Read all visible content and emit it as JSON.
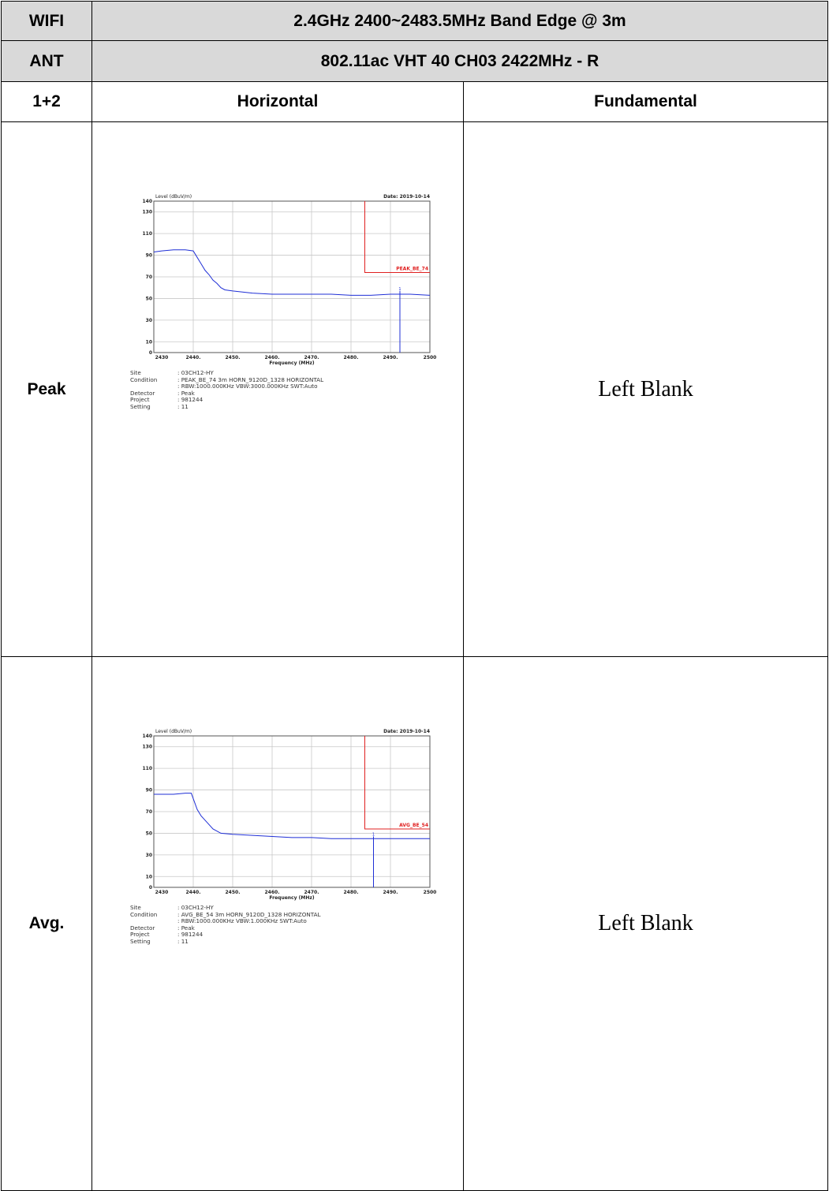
{
  "header": {
    "wifi_label": "WIFI",
    "band_title": "2.4GHz 2400~2483.5MHz Band Edge @ 3m",
    "ant_label": "ANT",
    "mode_title": "802.11ac VHT 40 CH03 2422MHz - R",
    "ant_value": "1+2",
    "col_horizontal": "Horizontal",
    "col_fundamental": "Fundamental"
  },
  "rows": [
    {
      "label": "Peak",
      "fundamental": "Left Blank",
      "plot": {
        "ylabel": "Level (dBuV/m)",
        "date": "Date: 2019-10-14",
        "xlabel": "Frequency (MHz)",
        "limit_label": "PEAK_BE_74",
        "marker": "1",
        "site_key": "Site",
        "site_val": ": 03CH12-HY",
        "condition_key": "Condition",
        "condition_val": ": PEAK_BE_74 3m HORN_9120D_1328 HORIZONTAL",
        "condition_val2": ": RBW:1000.000KHz VBW:3000.000KHz SWT:Auto",
        "detector_key": "Detector",
        "detector_val": ": Peak",
        "project_key": "Project",
        "project_val": ": 981244",
        "setting_key": "Setting",
        "setting_val": ": 11"
      }
    },
    {
      "label": "Avg.",
      "fundamental": "Left Blank",
      "plot": {
        "ylabel": "Level (dBuV/m)",
        "date": "Date: 2019-10-14",
        "xlabel": "Frequency (MHz)",
        "limit_label": "AVG_BE_54",
        "marker": "1",
        "site_key": "Site",
        "site_val": ": 03CH12-HY",
        "condition_key": "Condition",
        "condition_val": ": AVG_BE_54 3m HORN_9120D_1328 HORIZONTAL",
        "condition_val2": ": RBW:1000.000KHz VBW:1.000KHz SWT:Auto",
        "detector_key": "Detector",
        "detector_val": ": Peak",
        "project_key": "Project",
        "project_val": ": 981244",
        "setting_key": "Setting",
        "setting_val": ": 11"
      }
    }
  ],
  "colors": {
    "trace": "#1f2fd6",
    "limit": "#e02020",
    "grid": "#c8c8c8"
  },
  "chart_data": [
    {
      "type": "line",
      "title": "",
      "xlabel": "Frequency (MHz)",
      "ylabel": "Level (dBuV/m)",
      "xlim": [
        2430,
        2500
      ],
      "ylim": [
        0,
        140
      ],
      "x_ticks": [
        "2430",
        "2440.",
        "2450.",
        "2460.",
        "2470.",
        "2480.",
        "2490.",
        "2500"
      ],
      "y_ticks": [
        "140",
        "130",
        "110",
        "90",
        "70",
        "50",
        "30",
        "10",
        "0"
      ],
      "grid": true,
      "series": [
        {
          "x": [
            2430,
            2432,
            2435,
            2438,
            2440,
            2441,
            2442,
            2443,
            2444,
            2445,
            2446,
            2447,
            2448,
            2450,
            2455,
            2460,
            2465,
            2470,
            2475,
            2480,
            2485,
            2490,
            2495,
            2500
          ],
          "values": [
            93,
            94,
            95,
            95,
            94,
            88,
            82,
            76,
            72,
            67,
            64,
            60,
            58,
            57,
            55,
            54,
            54,
            54,
            54,
            53,
            53,
            54,
            54,
            53
          ]
        },
        {
          "name": "PEAK_BE_74",
          "x": [
            2483.5,
            2483.5,
            2500
          ],
          "values": [
            140,
            74,
            74
          ]
        }
      ],
      "marker": {
        "x": 2492.4,
        "y": 57
      }
    },
    {
      "type": "line",
      "title": "",
      "xlabel": "Frequency (MHz)",
      "ylabel": "Level (dBuV/m)",
      "xlim": [
        2430,
        2500
      ],
      "ylim": [
        0,
        140
      ],
      "x_ticks": [
        "2430",
        "2440.",
        "2450.",
        "2460.",
        "2470.",
        "2480.",
        "2490.",
        "2500"
      ],
      "y_ticks": [
        "140",
        "130",
        "110",
        "90",
        "70",
        "50",
        "30",
        "10",
        "0"
      ],
      "grid": true,
      "series": [
        {
          "x": [
            2430,
            2432,
            2435,
            2438,
            2439.5,
            2440,
            2441,
            2442,
            2443,
            2444,
            2445,
            2447,
            2450,
            2455,
            2460,
            2465,
            2470,
            2475,
            2480,
            2485,
            2490,
            2495,
            2500
          ],
          "values": [
            86,
            86,
            86,
            87,
            87,
            82,
            72,
            66,
            62,
            58,
            54,
            50,
            49,
            48,
            47,
            46,
            46,
            45,
            45,
            45,
            45,
            45,
            45
          ]
        },
        {
          "name": "AVG_BE_54",
          "x": [
            2483.5,
            2483.5,
            2500
          ],
          "values": [
            140,
            54,
            54
          ]
        }
      ],
      "marker": {
        "x": 2485.7,
        "y": 47
      }
    }
  ]
}
